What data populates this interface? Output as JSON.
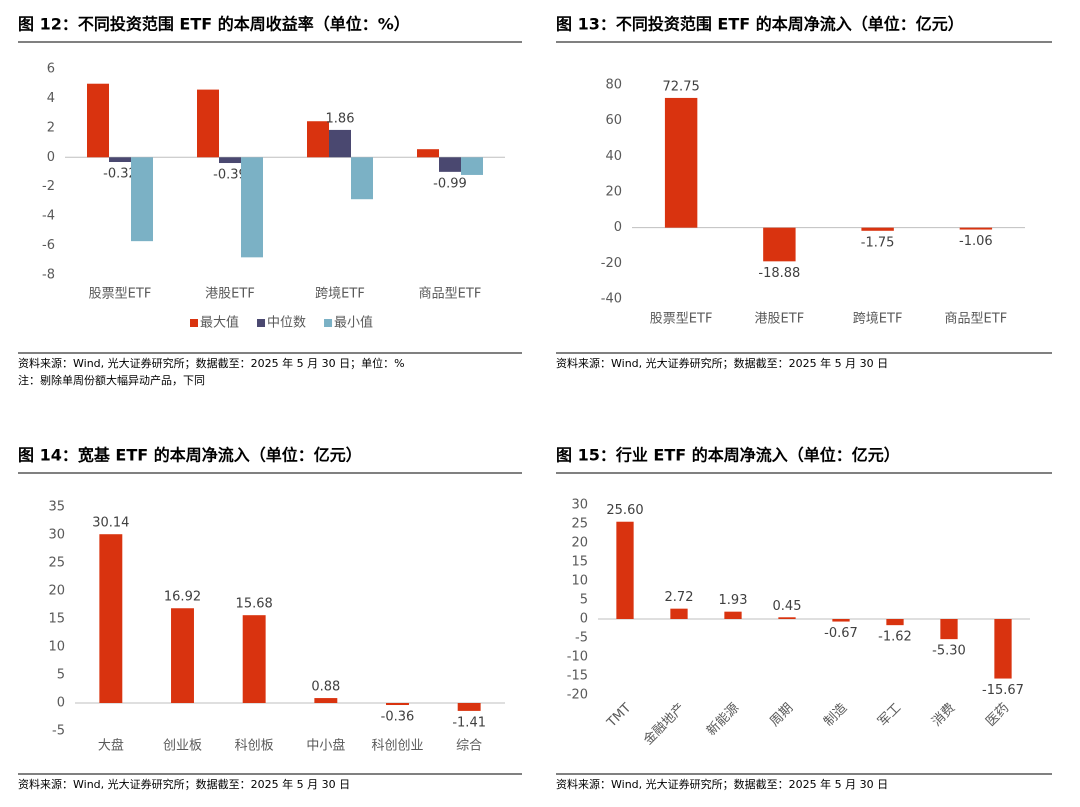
{
  "chart_data": [
    {
      "type": "bar",
      "title": "图 12：不同投资范围 ETF 的本周收益率（单位：%）",
      "categories": [
        "股票型ETF",
        "港股ETF",
        "跨境ETF",
        "商品型ETF"
      ],
      "series": [
        {
          "name": "最大值",
          "color": "#d9330f",
          "values": [
            5.0,
            4.6,
            2.45,
            0.55
          ]
        },
        {
          "name": "中位数",
          "color": "#4a4870",
          "values": [
            -0.32,
            -0.39,
            1.86,
            -0.99
          ],
          "data_labels": true
        },
        {
          "name": "最小值",
          "color": "#7bb1c5",
          "values": [
            -5.7,
            -6.8,
            -2.85,
            -1.2
          ]
        }
      ],
      "ylim": [
        -8,
        6
      ],
      "yticks": [
        -8,
        -6,
        -4,
        -2,
        0,
        2,
        4,
        6
      ],
      "legend": "bottom",
      "source": "资料来源：Wind, 光大证券研究所；数据截至：2025 年 5 月 30 日；单位：%",
      "note": "注：剔除单周份额大幅异动产品，下同"
    },
    {
      "type": "bar",
      "title": "图 13：不同投资范围 ETF 的本周净流入（单位：亿元）",
      "categories": [
        "股票型ETF",
        "港股ETF",
        "跨境ETF",
        "商品型ETF"
      ],
      "values": [
        72.75,
        -18.88,
        -1.75,
        -1.06
      ],
      "color": "#d9330f",
      "data_labels": true,
      "ylim": [
        -40,
        80
      ],
      "yticks": [
        -40,
        -20,
        0,
        20,
        40,
        60,
        80
      ],
      "source": "资料来源：Wind, 光大证券研究所；数据截至：2025 年 5 月 30 日"
    },
    {
      "type": "bar",
      "title": "图 14：宽基 ETF 的本周净流入（单位：亿元）",
      "categories": [
        "大盘",
        "创业板",
        "科创板",
        "中小盘",
        "科创创业",
        "综合"
      ],
      "values": [
        30.14,
        16.92,
        15.68,
        0.88,
        -0.36,
        -1.41
      ],
      "color": "#d9330f",
      "data_labels": true,
      "ylim": [
        -5,
        35
      ],
      "yticks": [
        -5,
        0,
        5,
        10,
        15,
        20,
        25,
        30,
        35
      ],
      "source": "资料来源：Wind, 光大证券研究所；数据截至：2025 年 5 月 30 日"
    },
    {
      "type": "bar",
      "title": "图 15：行业 ETF 的本周净流入（单位：亿元）",
      "categories": [
        "TMT",
        "金融地产",
        "新能源",
        "周期",
        "制造",
        "军工",
        "消费",
        "医药"
      ],
      "values": [
        25.6,
        2.72,
        1.93,
        0.45,
        -0.67,
        -1.62,
        -5.3,
        -15.67
      ],
      "value_labels": [
        "25.60",
        "2.72",
        "1.93",
        "0.45",
        "-0.67",
        "-1.62",
        "-5.30",
        "-15.67"
      ],
      "color": "#d9330f",
      "data_labels": true,
      "ylim": [
        -20,
        30
      ],
      "yticks": [
        -20,
        -15,
        -10,
        -5,
        0,
        5,
        10,
        15,
        20,
        25,
        30
      ],
      "source": "资料来源：Wind, 光大证券研究所；数据截至：2025 年 5 月 30 日"
    }
  ]
}
